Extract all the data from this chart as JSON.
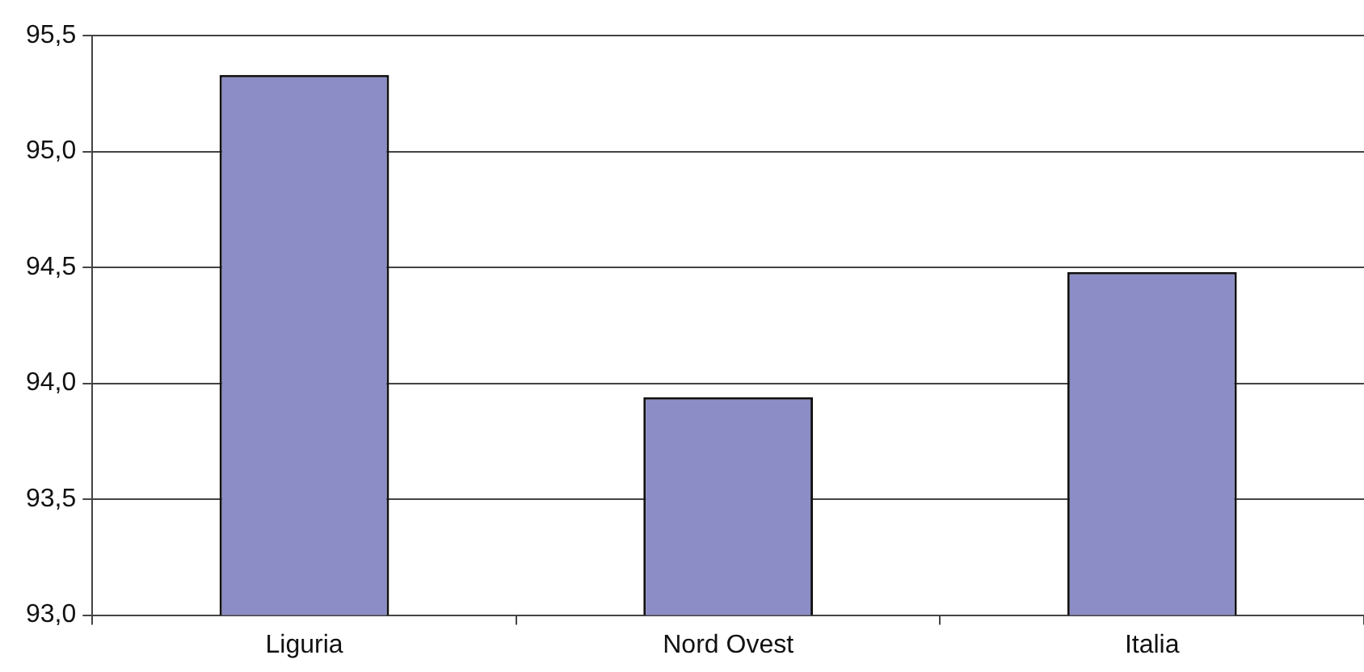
{
  "chart_data": {
    "type": "bar",
    "categories": [
      "Liguria",
      "Nord Ovest",
      "Italia"
    ],
    "values": [
      95.33,
      93.94,
      94.48
    ],
    "color": "#8c8cc6",
    "ylim": [
      93.0,
      95.5
    ],
    "yticks": [
      {
        "value": 93.0,
        "label": "93,0"
      },
      {
        "value": 93.5,
        "label": "93,5"
      },
      {
        "value": 94.0,
        "label": "94,0"
      },
      {
        "value": 94.5,
        "label": "94,5"
      },
      {
        "value": 95.0,
        "label": "95,0"
      },
      {
        "value": 95.5,
        "label": "95,5"
      }
    ],
    "grid": "y"
  }
}
